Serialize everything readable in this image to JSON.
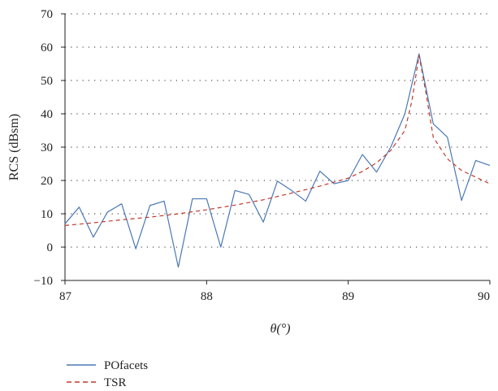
{
  "chart_data": {
    "type": "line",
    "title": "",
    "xlabel": "θ(°)",
    "ylabel": "RCS (dBsm)",
    "xlim": [
      87,
      90
    ],
    "ylim": [
      -10,
      70
    ],
    "xticks": [
      87,
      88,
      89,
      90
    ],
    "xtick_labels": [
      "87",
      "88",
      "89",
      "90"
    ],
    "yticks": [
      -10,
      0,
      10,
      20,
      30,
      40,
      50,
      60,
      70
    ],
    "ytick_labels": [
      "−10",
      "0",
      "10",
      "20",
      "30",
      "40",
      "50",
      "60",
      "70"
    ],
    "grid": "horizontal dotted",
    "legend_position": "bottom-left below plot",
    "series": [
      {
        "name": "POfacets",
        "color": "#4a78b5",
        "style": "solid",
        "x": [
          87.0,
          87.1,
          87.2,
          87.3,
          87.4,
          87.5,
          87.6,
          87.7,
          87.8,
          87.9,
          88.0,
          88.1,
          88.2,
          88.3,
          88.4,
          88.5,
          88.6,
          88.7,
          88.8,
          88.9,
          89.0,
          89.1,
          89.2,
          89.3,
          89.4,
          89.5,
          89.6,
          89.7,
          89.8,
          89.9,
          90.0
        ],
        "y": [
          7.0,
          12.0,
          3.0,
          10.5,
          13.0,
          -0.5,
          12.5,
          13.8,
          -6.0,
          14.5,
          14.5,
          0.0,
          17.0,
          15.8,
          7.5,
          19.8,
          17.0,
          13.8,
          22.8,
          19.0,
          20.0,
          27.8,
          22.5,
          30.0,
          40.0,
          58.0,
          37.0,
          33.0,
          14.0,
          26.0,
          24.5
        ]
      },
      {
        "name": "TSR",
        "color": "#c0392b",
        "style": "dashed",
        "x": [
          87.0,
          87.2,
          87.4,
          87.6,
          87.8,
          88.0,
          88.2,
          88.4,
          88.6,
          88.8,
          89.0,
          89.1,
          89.2,
          89.3,
          89.4,
          89.45,
          89.5,
          89.55,
          89.6,
          89.7,
          89.8,
          89.9,
          90.0
        ],
        "y": [
          6.5,
          7.3,
          8.2,
          9.0,
          10.0,
          11.2,
          12.6,
          14.2,
          16.2,
          18.3,
          20.7,
          22.7,
          25.3,
          29.0,
          35.0,
          44.0,
          57.5,
          46.0,
          33.0,
          26.5,
          23.0,
          21.0,
          19.0
        ]
      }
    ]
  }
}
